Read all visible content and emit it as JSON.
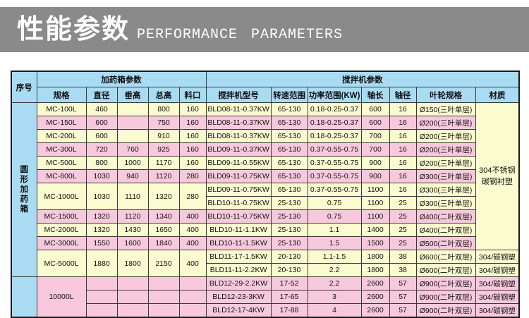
{
  "banner": {
    "title_cn": "性能参数",
    "title_en": "PERFORMANCE PARAMETERS",
    "bg_color": "#8A8A8A",
    "text_color": "#FFFFFF"
  },
  "colors": {
    "header_blue": "#A9DCF2",
    "row_yellow": "#FBFBD0",
    "row_pink": "#F8C9DC",
    "border": "#3A3A3A"
  },
  "table": {
    "serial_header": "序号",
    "group_left": "加药箱参数",
    "group_right": "搅拌机参数",
    "columns": [
      "规格",
      "直径",
      "垂高",
      "总高",
      "料口",
      "搅拌机型号",
      "转速范围",
      "功率范围(KW)",
      "轴长",
      "轴径",
      "叶轮规格",
      "材质"
    ],
    "category_vertical": "圆形加药箱",
    "material_merged": "304不锈钢\n碳钢衬塑",
    "rows": [
      {
        "bg": "y",
        "cells": [
          {
            "t": "圆形加药箱",
            "rs": 13,
            "cls": "cat",
            "name": "category-cell"
          },
          {
            "t": "MC-100L"
          },
          {
            "t": "460"
          },
          {
            "t": ""
          },
          {
            "t": "800"
          },
          {
            "t": "160"
          },
          {
            "t": "BLD08-11-0.37KW",
            "cls": "model"
          },
          {
            "t": "65-130"
          },
          {
            "t": "0.18-0.25-0.37"
          },
          {
            "t": "600"
          },
          {
            "t": "16"
          },
          {
            "t": "Ø150(三叶单层)"
          },
          {
            "t": "304不锈钢\n碳钢衬塑",
            "rs": 11,
            "cls": "material",
            "name": "material-merged-cell"
          }
        ]
      },
      {
        "bg": "p",
        "cells": [
          {
            "t": "MC-150L"
          },
          {
            "t": "600"
          },
          {
            "t": ""
          },
          {
            "t": "750"
          },
          {
            "t": "160"
          },
          {
            "t": "BLD08-11-0.37KW",
            "cls": "model"
          },
          {
            "t": "65-130"
          },
          {
            "t": "0.18-0.25-0.37"
          },
          {
            "t": "600"
          },
          {
            "t": "16"
          },
          {
            "t": "Ø200(三叶单层)"
          }
        ]
      },
      {
        "bg": "y",
        "cells": [
          {
            "t": "MC-200L"
          },
          {
            "t": "600"
          },
          {
            "t": ""
          },
          {
            "t": "910"
          },
          {
            "t": "160"
          },
          {
            "t": "BLD08-11-0.37KW",
            "cls": "model"
          },
          {
            "t": "65-130"
          },
          {
            "t": "0.18-0.25-0.37"
          },
          {
            "t": "700"
          },
          {
            "t": "16"
          },
          {
            "t": "Ø200(三叶单层)"
          }
        ]
      },
      {
        "bg": "p",
        "cells": [
          {
            "t": "MC-300L"
          },
          {
            "t": "720"
          },
          {
            "t": "760"
          },
          {
            "t": "925"
          },
          {
            "t": "160"
          },
          {
            "t": "BLD09-11-0.37KW",
            "cls": "model"
          },
          {
            "t": "65-130"
          },
          {
            "t": "0.37-0.55-0.75"
          },
          {
            "t": "700"
          },
          {
            "t": "16"
          },
          {
            "t": "Ø200(三叶单层)"
          }
        ]
      },
      {
        "bg": "y",
        "cells": [
          {
            "t": "MC-500L"
          },
          {
            "t": "800"
          },
          {
            "t": "1000"
          },
          {
            "t": "1170"
          },
          {
            "t": "160"
          },
          {
            "t": "BLD09-11-0.55KW",
            "cls": "model"
          },
          {
            "t": "65-130"
          },
          {
            "t": "0.37-0.55-0.75"
          },
          {
            "t": "900"
          },
          {
            "t": "16"
          },
          {
            "t": "Ø200(三叶单层)"
          }
        ]
      },
      {
        "bg": "p",
        "cells": [
          {
            "t": "MC-800L"
          },
          {
            "t": "1030"
          },
          {
            "t": "940"
          },
          {
            "t": "1120"
          },
          {
            "t": "280"
          },
          {
            "t": "BLD09-11-0.75KW",
            "cls": "model"
          },
          {
            "t": "65-130"
          },
          {
            "t": "0.37-0.55-0.75"
          },
          {
            "t": "900"
          },
          {
            "t": "16"
          },
          {
            "t": "Ø300(三叶单层)"
          }
        ]
      },
      {
        "bg": "y",
        "cells": [
          {
            "t": "MC-1000L",
            "rs": 2
          },
          {
            "t": "1030",
            "rs": 2
          },
          {
            "t": "1110",
            "rs": 2
          },
          {
            "t": "1320",
            "rs": 2
          },
          {
            "t": "280",
            "rs": 2
          },
          {
            "t": "BLD09-11-0.75KW",
            "cls": "model"
          },
          {
            "t": "65-130"
          },
          {
            "t": "0.37-0.55-0.75"
          },
          {
            "t": "1100"
          },
          {
            "t": "16"
          },
          {
            "t": "Ø300(三叶单层)"
          }
        ]
      },
      {
        "bg": "y",
        "cells": [
          {
            "t": "BLD10-11-0.75KW",
            "cls": "model"
          },
          {
            "t": "25-130"
          },
          {
            "t": "0.75"
          },
          {
            "t": "1100"
          },
          {
            "t": "25"
          },
          {
            "t": "Ø300(三叶单层)"
          }
        ]
      },
      {
        "bg": "p",
        "cells": [
          {
            "t": "MC-1500L"
          },
          {
            "t": "1320"
          },
          {
            "t": "1120"
          },
          {
            "t": "1340"
          },
          {
            "t": "400"
          },
          {
            "t": "BLD10-11-0.75KW",
            "cls": "model"
          },
          {
            "t": "25-130"
          },
          {
            "t": "0.75"
          },
          {
            "t": "1100"
          },
          {
            "t": "25"
          },
          {
            "t": "Ø400(二叶双层)"
          }
        ]
      },
      {
        "bg": "y",
        "cells": [
          {
            "t": "MC-2000L"
          },
          {
            "t": "1320"
          },
          {
            "t": "1430"
          },
          {
            "t": "1650"
          },
          {
            "t": "400"
          },
          {
            "t": "BLD10-11-1.1KW",
            "cls": "model"
          },
          {
            "t": "25-130"
          },
          {
            "t": "1.1"
          },
          {
            "t": "1400"
          },
          {
            "t": "25"
          },
          {
            "t": "Ø400(二叶双层)"
          }
        ]
      },
      {
        "bg": "p",
        "cells": [
          {
            "t": "MC-3000L"
          },
          {
            "t": "1550"
          },
          {
            "t": "1600"
          },
          {
            "t": "1840"
          },
          {
            "t": "400"
          },
          {
            "t": "BLD10-11-1.5KW",
            "cls": "model"
          },
          {
            "t": "25-130"
          },
          {
            "t": "1.5"
          },
          {
            "t": "1500"
          },
          {
            "t": "25"
          },
          {
            "t": "Ø500(二叶双层)"
          }
        ]
      },
      {
        "bg": "y",
        "cells": [
          {
            "t": "MC-5000L",
            "rs": 2
          },
          {
            "t": "1880",
            "rs": 2
          },
          {
            "t": "1800",
            "rs": 2
          },
          {
            "t": "2150",
            "rs": 2
          },
          {
            "t": "400",
            "rs": 2
          },
          {
            "t": "BLD11-17-1.5KW",
            "cls": "model"
          },
          {
            "t": "20-130"
          },
          {
            "t": "1.1-1.5"
          },
          {
            "t": "1800"
          },
          {
            "t": "38"
          },
          {
            "t": "Ø600(二叶双层)"
          },
          {
            "t": "304/碳钢塑"
          }
        ]
      },
      {
        "bg": "y",
        "cells": [
          {
            "t": "BLD11-11-2.2KW",
            "cls": "model"
          },
          {
            "t": "20-130"
          },
          {
            "t": "2.2"
          },
          {
            "t": "1800"
          },
          {
            "t": "38"
          },
          {
            "t": "Ø600(二叶双层)"
          },
          {
            "t": "304/碳钢塑"
          }
        ]
      },
      {
        "bg": "p",
        "cells": [
          {
            "t": "",
            "rs": 3,
            "cls": "cat",
            "name": "category-cell-empty"
          },
          {
            "t": "10000L",
            "rs": 3
          },
          {
            "t": ""
          },
          {
            "t": ""
          },
          {
            "t": ""
          },
          {
            "t": ""
          },
          {
            "t": "BLD12-29-2.2KW",
            "cls": "model"
          },
          {
            "t": "17-52"
          },
          {
            "t": "2.2"
          },
          {
            "t": "2600"
          },
          {
            "t": "57"
          },
          {
            "t": "Ø900(二叶双层)"
          },
          {
            "t": "304/碳钢塑"
          }
        ]
      },
      {
        "bg": "p",
        "cells": [
          {
            "t": ""
          },
          {
            "t": ""
          },
          {
            "t": ""
          },
          {
            "t": ""
          },
          {
            "t": "BLD12-23-3KW",
            "cls": "model"
          },
          {
            "t": "17-65"
          },
          {
            "t": "3"
          },
          {
            "t": "2600"
          },
          {
            "t": "57"
          },
          {
            "t": "Ø900(二叶双层)"
          },
          {
            "t": "304/碳钢塑"
          }
        ]
      },
      {
        "bg": "p",
        "cells": [
          {
            "t": ""
          },
          {
            "t": ""
          },
          {
            "t": ""
          },
          {
            "t": ""
          },
          {
            "t": "BLD12-17-4KW",
            "cls": "model"
          },
          {
            "t": "17-88"
          },
          {
            "t": "4"
          },
          {
            "t": "2600"
          },
          {
            "t": "57"
          },
          {
            "t": "Ø900(二叶双层)"
          },
          {
            "t": "304/碳钢塑"
          }
        ]
      }
    ]
  }
}
